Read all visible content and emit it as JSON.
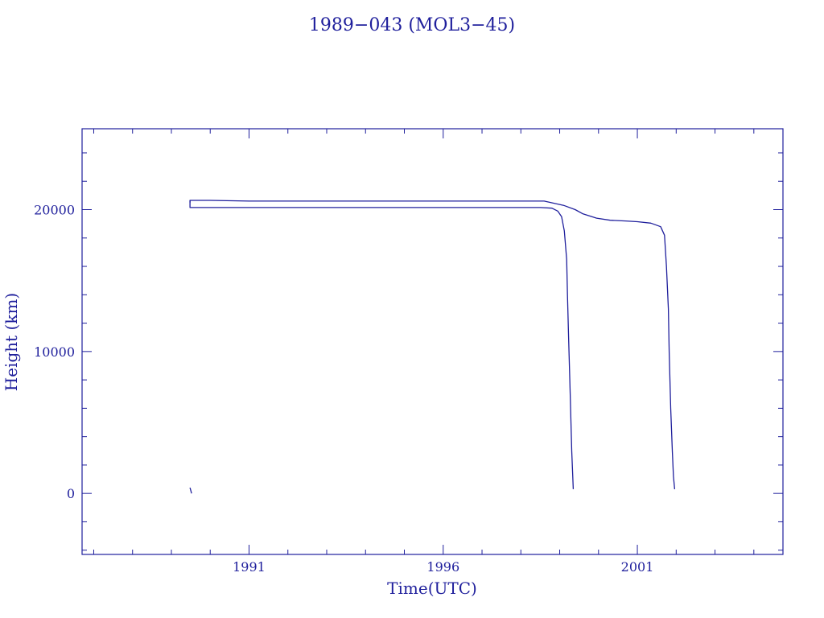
{
  "chart_data": {
    "type": "line",
    "title": "1989−043 (MOL3−45)",
    "xlabel": "Time(UTC)",
    "ylabel": "Height (km)",
    "xlim": [
      1986.7,
      2004.75
    ],
    "ylim": [
      -4300,
      25700
    ],
    "xticks": [
      1991,
      1996,
      2001
    ],
    "xtick_labels": [
      "1991",
      "1996",
      "2001"
    ],
    "x_minor_step": 1,
    "yticks": [
      0,
      10000,
      20000
    ],
    "ytick_labels": [
      "0",
      "10000",
      "20000"
    ],
    "y_minor_step": 2000,
    "grid": false,
    "legend": "none",
    "color": "#1f1f9c",
    "series": [
      {
        "x": [
          1989.48,
          1989.5,
          1989.52
        ],
        "y": [
          400,
          200,
          0
        ]
      },
      {
        "x": [
          1989.48,
          1989.48,
          1990.0,
          1991.0,
          1993.0,
          1995.0,
          1997.0,
          1998.1,
          1998.6,
          1999.1,
          1999.4,
          1999.6,
          1999.95,
          2000.3,
          2000.7,
          2001.0,
          2001.35,
          2001.6,
          2001.7,
          2001.75,
          2001.8,
          2001.82,
          2001.86,
          2001.9,
          2001.93,
          2001.96
        ],
        "y": [
          20500,
          20650,
          20650,
          20600,
          20600,
          20600,
          20600,
          20600,
          20600,
          20300,
          20000,
          19700,
          19400,
          19250,
          19200,
          19150,
          19050,
          18800,
          18200,
          16000,
          13000,
          10000,
          6000,
          3000,
          1200,
          300
        ]
      },
      {
        "x": [
          1989.48,
          1989.48,
          1991.0,
          1993.0,
          1995.0,
          1997.0,
          1998.5,
          1998.8,
          1998.95,
          1999.05,
          1999.12,
          1999.18,
          1999.2,
          1999.23,
          1999.27,
          1999.31,
          1999.35
        ],
        "y": [
          20650,
          20150,
          20150,
          20150,
          20150,
          20150,
          20150,
          20100,
          19900,
          19500,
          18500,
          16500,
          14000,
          11000,
          7000,
          3000,
          300
        ]
      }
    ]
  }
}
